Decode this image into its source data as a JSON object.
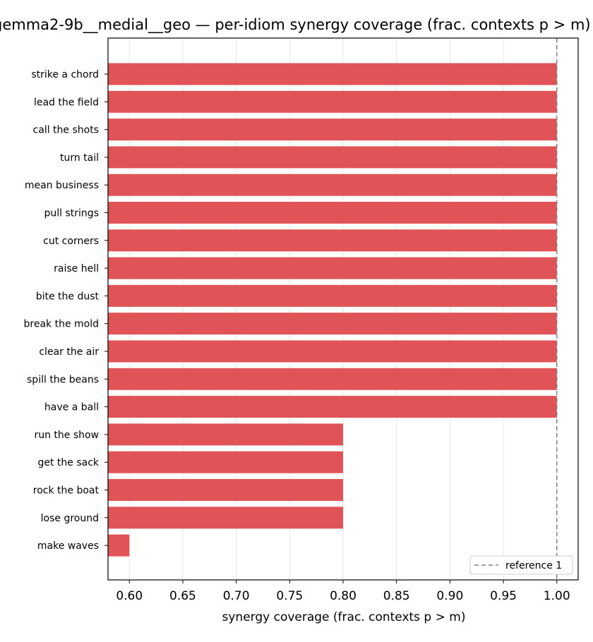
{
  "chart_data": {
    "type": "bar",
    "orientation": "horizontal",
    "title": "gemma2-9b__medial__geo — per-idiom synergy coverage  (frac. contexts p > m)",
    "xlabel": "synergy coverage  (frac. contexts p > m)",
    "ylabel": "",
    "xlim": [
      0.58,
      1.02
    ],
    "xticks": [
      0.6,
      0.65,
      0.7,
      0.75,
      0.8,
      0.85,
      0.9,
      0.95,
      1.0
    ],
    "xtick_labels": [
      "0.60",
      "0.65",
      "0.70",
      "0.75",
      "0.80",
      "0.85",
      "0.90",
      "0.95",
      "1.00"
    ],
    "grid": "vertical",
    "categories": [
      "strike a chord",
      "lead the field",
      "call the shots",
      "turn tail",
      "mean business",
      "pull strings",
      "cut corners",
      "raise hell",
      "bite the dust",
      "break the mold",
      "clear the air",
      "spill the beans",
      "have a ball",
      "run the show",
      "get the sack",
      "rock the boat",
      "lose ground",
      "make waves"
    ],
    "values": [
      1.0,
      1.0,
      1.0,
      1.0,
      1.0,
      1.0,
      1.0,
      1.0,
      1.0,
      1.0,
      1.0,
      1.0,
      1.0,
      0.8,
      0.8,
      0.8,
      0.8,
      0.6
    ],
    "bar_color": "#e05356",
    "reference_line": {
      "value": 1.0,
      "label": "reference 1",
      "color": "#808080",
      "style": "dashed"
    },
    "legend_placement": "lower-right"
  }
}
